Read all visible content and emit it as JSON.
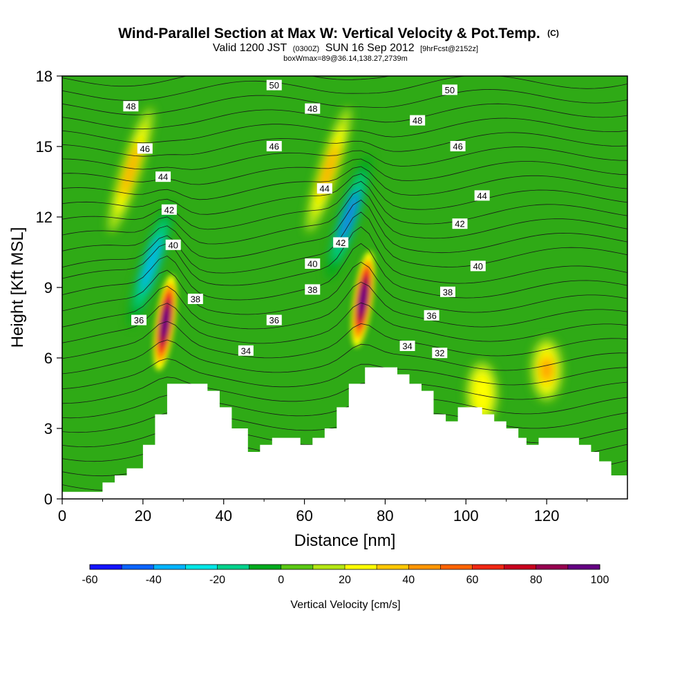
{
  "title": {
    "main": "Wind-Parallel Section at Max W: Vertical Velocity & Pot.Temp.",
    "copyright": "(C)",
    "valid_prefix": "Valid 1200 JST",
    "valid_utc": "(0300Z)",
    "valid_date": "SUN 16 Sep 2012",
    "forecast": "[9hrFcst@2152z]",
    "box_info": "boxWmax=89@36.14,138.27,2739m"
  },
  "colorbar": {
    "title": "Vertical Velocity [cm/s]",
    "tick_labels": [
      "-60",
      "-40",
      "-20",
      "0",
      "20",
      "40",
      "60",
      "80",
      "100"
    ],
    "levels": [
      -60,
      -50,
      -40,
      -30,
      -20,
      -10,
      0,
      10,
      20,
      30,
      40,
      50,
      60,
      70,
      80,
      90,
      100
    ],
    "colors": [
      "#1414ff",
      "#0a64ff",
      "#00b4ff",
      "#00e6e6",
      "#00d28c",
      "#00aa1e",
      "#5ac814",
      "#b4e614",
      "#ffff00",
      "#ffc800",
      "#ff9600",
      "#ff6400",
      "#f02814",
      "#c8001e",
      "#960050",
      "#640082"
    ]
  },
  "chart_data": {
    "type": "heatmap",
    "description_fields": "filled contours of vertical velocity with potential temperature isolines",
    "xlabel": "Distance [nm]",
    "ylabel": "Height [Kft MSL]",
    "xlim": [
      0,
      140
    ],
    "ylim": [
      0,
      18
    ],
    "x_ticks": [
      "0",
      "20",
      "40",
      "60",
      "80",
      "100",
      "120"
    ],
    "y_ticks": [
      "0",
      "3",
      "6",
      "9",
      "12",
      "15",
      "18"
    ],
    "terrain": {
      "x": [
        0,
        10,
        10,
        13,
        13,
        16,
        16,
        20,
        20,
        23,
        23,
        26,
        26,
        36,
        36,
        39,
        39,
        42,
        42,
        46,
        46,
        49,
        49,
        52,
        52,
        59,
        59,
        62,
        62,
        65,
        65,
        68,
        68,
        71,
        71,
        75,
        75,
        83,
        83,
        86,
        86,
        89,
        89,
        92,
        92,
        95,
        95,
        98,
        98,
        104,
        104,
        107,
        107,
        110,
        110,
        113,
        113,
        115,
        115,
        118,
        118,
        128,
        128,
        131,
        131,
        133,
        133,
        136,
        136,
        140
      ],
      "y": [
        0.3,
        0.3,
        0.7,
        0.7,
        1.0,
        1.0,
        1.3,
        1.3,
        2.3,
        2.3,
        3.6,
        3.6,
        4.9,
        4.9,
        4.6,
        4.6,
        3.9,
        3.9,
        3.0,
        3.0,
        2.0,
        2.0,
        2.3,
        2.3,
        2.6,
        2.6,
        2.3,
        2.3,
        2.6,
        2.6,
        3.0,
        3.0,
        3.9,
        3.9,
        4.9,
        4.9,
        5.6,
        5.6,
        5.3,
        5.3,
        4.9,
        4.9,
        4.6,
        4.6,
        3.6,
        3.6,
        3.3,
        3.3,
        3.9,
        3.9,
        3.6,
        3.6,
        3.3,
        3.3,
        3.0,
        3.0,
        2.6,
        2.6,
        2.3,
        2.3,
        2.6,
        2.6,
        2.3,
        2.3,
        2.0,
        2.0,
        1.6,
        1.6,
        1.0,
        1.0
      ]
    },
    "w_features": [
      {
        "x": 25.5,
        "y": 7.5,
        "w": 90,
        "note": "updraft core"
      },
      {
        "x": 74.5,
        "y": 8.5,
        "w": 100,
        "note": "updraft core"
      },
      {
        "x": 22,
        "y": 10,
        "w": -40,
        "note": "downdraft band"
      },
      {
        "x": 71,
        "y": 12,
        "w": -50,
        "note": "downdraft band"
      },
      {
        "x": 17,
        "y": 14,
        "w": 40,
        "note": "updraft band"
      },
      {
        "x": 66,
        "y": 14,
        "w": 40,
        "note": "updraft band"
      },
      {
        "x": 120,
        "y": 5.5,
        "w": 40,
        "note": "updraft"
      },
      {
        "x": 104,
        "y": 4.5,
        "w": 25,
        "note": "updraft"
      }
    ],
    "theta_labels": [
      {
        "text": "50",
        "x": 52.5,
        "y": 17.6
      },
      {
        "text": "50",
        "x": 96,
        "y": 17.4
      },
      {
        "text": "48",
        "x": 17,
        "y": 16.7
      },
      {
        "text": "48",
        "x": 62,
        "y": 16.6
      },
      {
        "text": "48",
        "x": 88,
        "y": 16.1
      },
      {
        "text": "46",
        "x": 20.5,
        "y": 14.9
      },
      {
        "text": "46",
        "x": 52.5,
        "y": 15.0
      },
      {
        "text": "46",
        "x": 98,
        "y": 15.0
      },
      {
        "text": "44",
        "x": 25,
        "y": 13.7
      },
      {
        "text": "44",
        "x": 65,
        "y": 13.2
      },
      {
        "text": "44",
        "x": 104,
        "y": 12.9
      },
      {
        "text": "42",
        "x": 26.5,
        "y": 12.3
      },
      {
        "text": "42",
        "x": 69,
        "y": 10.9
      },
      {
        "text": "42",
        "x": 98.5,
        "y": 11.7
      },
      {
        "text": "40",
        "x": 27.5,
        "y": 10.8
      },
      {
        "text": "40",
        "x": 62,
        "y": 10.0
      },
      {
        "text": "40",
        "x": 103,
        "y": 9.9
      },
      {
        "text": "38",
        "x": 33,
        "y": 8.5
      },
      {
        "text": "38",
        "x": 62,
        "y": 8.9
      },
      {
        "text": "38",
        "x": 95.5,
        "y": 8.8
      },
      {
        "text": "36",
        "x": 19,
        "y": 7.6
      },
      {
        "text": "36",
        "x": 52.5,
        "y": 7.6
      },
      {
        "text": "36",
        "x": 91.5,
        "y": 7.8
      },
      {
        "text": "34",
        "x": 45.5,
        "y": 6.3
      },
      {
        "text": "34",
        "x": 85.5,
        "y": 6.5
      },
      {
        "text": "32",
        "x": 93.5,
        "y": 6.2
      }
    ]
  }
}
